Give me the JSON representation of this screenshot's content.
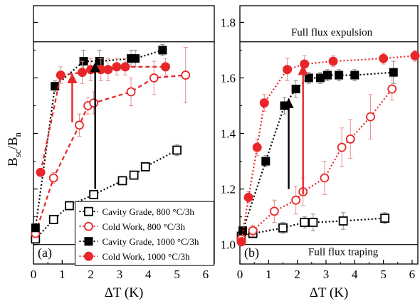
{
  "figure": {
    "ylabel": "B_sc/B_n",
    "ylabel_main": "B",
    "ylabel_sub1": "sc",
    "ylabel_slash": "/B",
    "ylabel_sub2": "n"
  },
  "chart_data": [
    {
      "type": "scatter",
      "panel": "(a)",
      "xlabel": "ΔT (K)",
      "ylabel": "B_sc/B_n",
      "xlim": [
        0,
        6.3
      ],
      "ylim": [
        0.93,
        1.86
      ],
      "xticks": [
        0,
        1,
        2,
        3,
        4,
        5,
        6
      ],
      "yticks": [
        1.0,
        1.2,
        1.4,
        1.6,
        1.8
      ],
      "ytick_labels_shown": false,
      "grid": false,
      "legend_position": "bottom-right",
      "hlines": [
        1.73,
        1.0
      ],
      "arrows": [
        {
          "x": 1.35,
          "y_from": 1.44,
          "y_to": 1.61,
          "color": "#e8262a"
        },
        {
          "x": 2.15,
          "y_from": 1.2,
          "y_to": 1.65,
          "color": "#000000"
        }
      ],
      "series": [
        {
          "name": "Cavity Grade, 800 °C/3h",
          "marker": "open-square",
          "color": "#000000",
          "line": "dotted",
          "x": [
            0.07,
            0.7,
            1.25,
            2.1,
            3.1,
            3.5,
            3.9,
            5.0
          ],
          "y": [
            1.02,
            1.09,
            1.14,
            1.18,
            1.23,
            1.25,
            1.28,
            1.34
          ],
          "err": [
            0.01,
            0.01,
            0.01,
            0.01,
            0.01,
            0.01,
            0.01,
            0.02
          ]
        },
        {
          "name": "Cold Work, 800 °C/3h",
          "marker": "open-circle",
          "color": "#e8262a",
          "line": "dashed",
          "x": [
            0.07,
            0.7,
            1.6,
            1.9,
            2.1,
            3.4,
            4.2,
            5.3
          ],
          "y": [
            1.04,
            1.24,
            1.43,
            1.5,
            1.51,
            1.55,
            1.6,
            1.61
          ],
          "err": [
            0.01,
            0.02,
            0.04,
            0.03,
            0.04,
            0.05,
            0.06,
            0.1
          ]
        },
        {
          "name": "Cavity Grade, 1000 °C/3h",
          "marker": "filled-square",
          "color": "#000000",
          "line": "dotted",
          "x": [
            0.07,
            0.75,
            1.75,
            2.3,
            3.4,
            3.55,
            4.5
          ],
          "y": [
            1.06,
            1.57,
            1.66,
            1.66,
            1.67,
            1.67,
            1.7
          ],
          "err": [
            0.01,
            0.02,
            0.04,
            0.04,
            0.03,
            0.03,
            0.02
          ]
        },
        {
          "name": "Cold Work, 1000 °C/3h",
          "marker": "filled-circle",
          "color": "#e8262a",
          "line": "dashed",
          "x": [
            0.25,
            0.95,
            1.7,
            2.0,
            2.35,
            2.6,
            2.9,
            3.2,
            4.6
          ],
          "y": [
            1.26,
            1.61,
            1.62,
            1.63,
            1.63,
            1.63,
            1.64,
            1.64,
            1.64
          ],
          "err": [
            0.01,
            0.03,
            0.04,
            0.04,
            0.04,
            0.04,
            0.03,
            0.03,
            0.03
          ]
        }
      ],
      "legend": [
        {
          "label": "Cavity Grade, 800 °C/3h",
          "marker": "open-square",
          "color": "#000000",
          "line": "dotted"
        },
        {
          "label": "Cold Work, 800 °C/3h",
          "marker": "open-circle",
          "color": "#e8262a",
          "line": "dotted"
        },
        {
          "label": "Cavity Grade, 1000 °C/3h",
          "marker": "filled-square",
          "color": "#000000",
          "line": "dotted"
        },
        {
          "label": "Cold Work, 1000 °C/3h",
          "marker": "filled-circle",
          "color": "#e8262a",
          "line": "dotted"
        }
      ]
    },
    {
      "type": "scatter",
      "panel": "(b)",
      "xlabel": "ΔT (K)",
      "ylabel": "",
      "xlim": [
        0,
        6.2
      ],
      "ylim": [
        0.93,
        1.86
      ],
      "xticks": [
        0,
        1,
        2,
        3,
        4,
        5,
        6
      ],
      "yticks": [
        1.0,
        1.2,
        1.4,
        1.6,
        1.8
      ],
      "ytick_labels_shown": true,
      "grid": false,
      "annotations": [
        {
          "text": "Full flux expulsion",
          "x": 3.2,
          "y": 1.765
        },
        {
          "text": "Full flux traping",
          "x": 3.6,
          "y": 0.975
        }
      ],
      "hlines": [
        1.73,
        1.0
      ],
      "arrows": [
        {
          "x": 1.7,
          "y_from": 1.2,
          "y_to": 1.52,
          "color": "#000000"
        },
        {
          "x": 2.2,
          "y_from": 1.18,
          "y_to": 1.64,
          "color": "#e8262a"
        }
      ],
      "series": [
        {
          "name": "Cavity Grade, 800 °C/3h",
          "marker": "open-square",
          "color": "#000000",
          "line": "dotted",
          "x": [
            0.05,
            0.45,
            1.5,
            2.25,
            2.55,
            3.6,
            5.05
          ],
          "y": [
            1.03,
            1.04,
            1.06,
            1.08,
            1.08,
            1.085,
            1.095
          ],
          "err": [
            0.01,
            0.01,
            0.02,
            0.02,
            0.03,
            0.03,
            0.02
          ]
        },
        {
          "name": "Cold Work, 800 °C/3h",
          "marker": "open-circle",
          "color": "#e8262a",
          "line": "dotted",
          "x": [
            0.05,
            0.45,
            1.2,
            1.95,
            2.2,
            2.95,
            3.55,
            3.85,
            4.55,
            5.3
          ],
          "y": [
            1.02,
            1.05,
            1.12,
            1.16,
            1.19,
            1.24,
            1.35,
            1.38,
            1.46,
            1.56
          ],
          "err": [
            0.01,
            0.02,
            0.04,
            0.05,
            0.05,
            0.06,
            0.07,
            0.07,
            0.08,
            0.04
          ]
        },
        {
          "name": "Cavity Grade, 1000 °C/3h",
          "marker": "filled-square",
          "color": "#000000",
          "line": "dotted",
          "x": [
            0.1,
            0.9,
            1.55,
            1.95,
            2.4,
            2.8,
            3.05,
            3.45,
            4.0,
            5.35
          ],
          "y": [
            1.05,
            1.3,
            1.5,
            1.56,
            1.6,
            1.6,
            1.61,
            1.61,
            1.61,
            1.62
          ],
          "err": [
            0.01,
            0.02,
            0.03,
            0.03,
            0.02,
            0.02,
            0.02,
            0.02,
            0.02,
            0.04
          ]
        },
        {
          "name": "Cold Work, 1000 °C/3h",
          "marker": "filled-circle",
          "color": "#e8262a",
          "line": "dotted",
          "x": [
            0.05,
            0.3,
            0.6,
            0.85,
            1.65,
            2.25,
            3.25,
            5.0,
            6.1
          ],
          "y": [
            1.01,
            1.17,
            1.35,
            1.51,
            1.63,
            1.65,
            1.66,
            1.67,
            1.68
          ],
          "err": [
            0.01,
            0.02,
            0.03,
            0.03,
            0.04,
            0.03,
            0.02,
            0.02,
            0.02
          ]
        }
      ]
    }
  ]
}
